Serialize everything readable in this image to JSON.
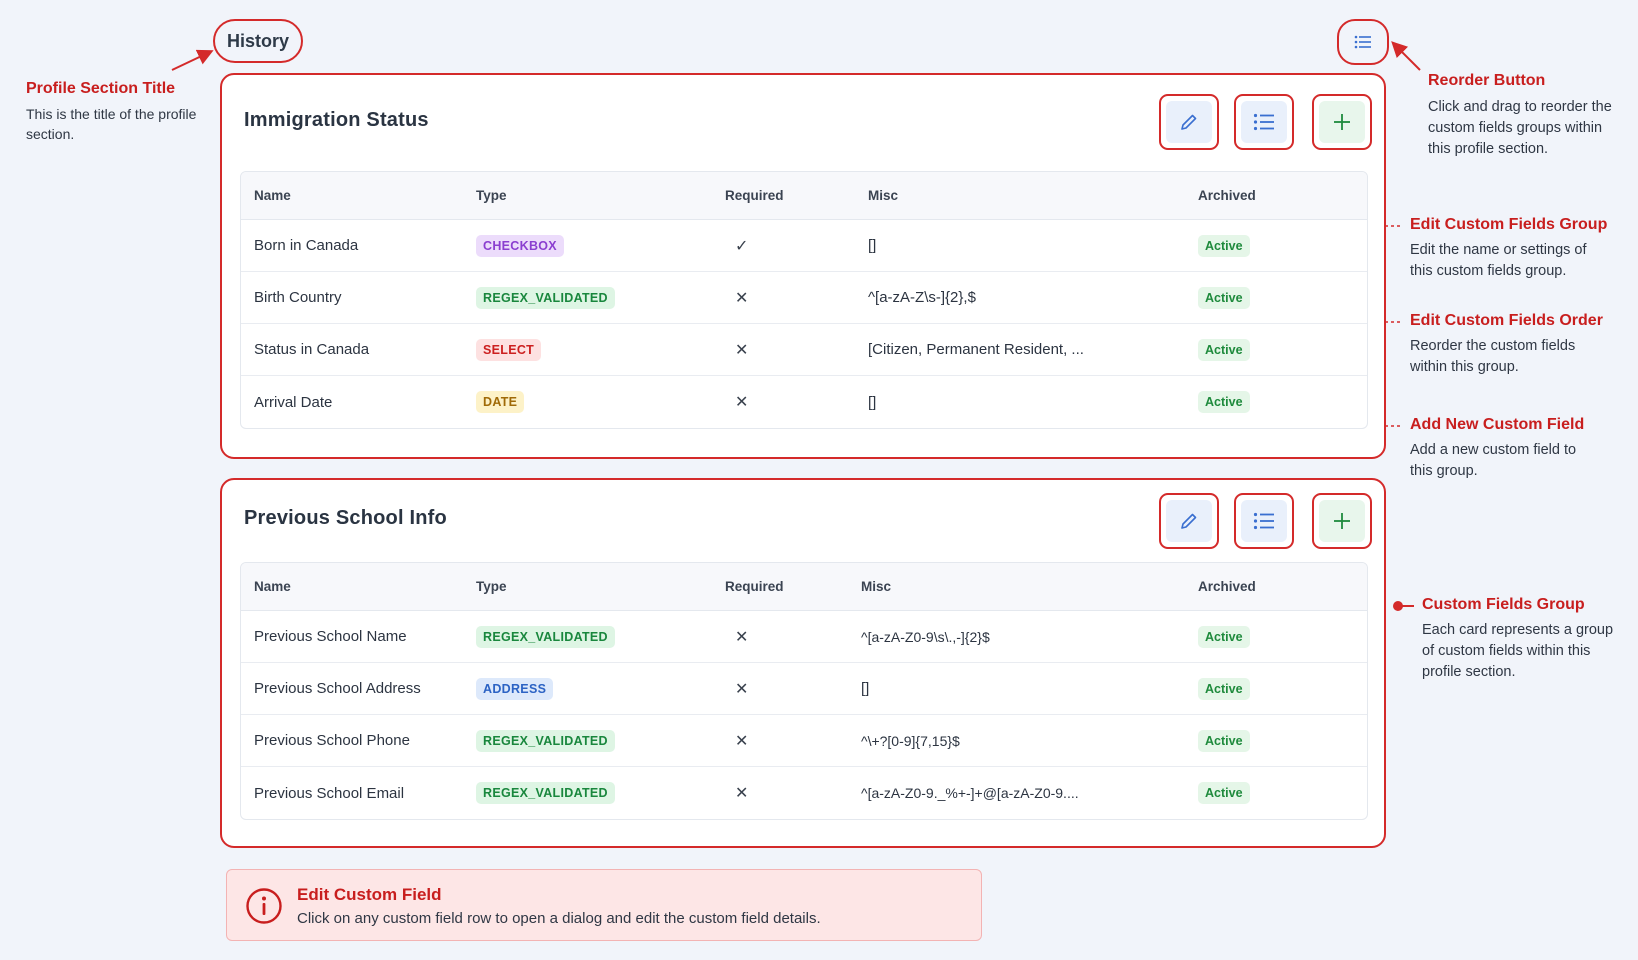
{
  "header": {
    "history_label": "History"
  },
  "callouts": {
    "profile_section_title": {
      "title": "Profile Section Title",
      "text": "This is the title of the profile section."
    },
    "reorder_button": {
      "title": "Reorder Button",
      "text": "Click and drag to reorder the custom fields groups within this profile section."
    },
    "edit_group": {
      "title": "Edit Custom Fields Group",
      "text": "Edit the name or settings of this custom fields group."
    },
    "edit_order": {
      "title": "Edit Custom Fields Order",
      "text": "Reorder the custom fields within this group."
    },
    "add_field": {
      "title": "Add New Custom Field",
      "text": "Add a new custom field to this group."
    },
    "fields_group": {
      "title": "Custom Fields Group",
      "text": "Each card represents a group of custom fields within this profile section."
    }
  },
  "columns": {
    "name": "Name",
    "type": "Type",
    "required": "Required",
    "misc": "Misc",
    "archived": "Archived"
  },
  "groups": [
    {
      "title": "Immigration Status",
      "rows": [
        {
          "name": "Born in Canada",
          "type": "CHECKBOX",
          "required": "✓",
          "misc": "[]",
          "archived": "Active"
        },
        {
          "name": "Birth Country",
          "type": "REGEX_VALIDATED",
          "required": "✕",
          "misc": "^[a-zA-Z\\s-]{2},$",
          "archived": "Active"
        },
        {
          "name": "Status in Canada",
          "type": "SELECT",
          "required": "✕",
          "misc": "[Citizen, Permanent Resident, ...",
          "archived": "Active"
        },
        {
          "name": "Arrival Date",
          "type": "DATE",
          "required": "✕",
          "misc": "[]",
          "archived": "Active"
        }
      ]
    },
    {
      "title": "Previous School Info",
      "rows": [
        {
          "name": "Previous School Name",
          "type": "REGEX_VALIDATED",
          "required": "✕",
          "misc": "^[a-zA-Z0-9\\s\\.,-]{2}$",
          "archived": "Active"
        },
        {
          "name": "Previous School Address",
          "type": "ADDRESS",
          "required": "✕",
          "misc": "[]",
          "archived": "Active"
        },
        {
          "name": "Previous School Phone",
          "type": "REGEX_VALIDATED",
          "required": "✕",
          "misc": "^\\+?[0-9]{7,15}$",
          "archived": "Active"
        },
        {
          "name": "Previous School Email",
          "type": "REGEX_VALIDATED",
          "required": "✕",
          "misc": "^[a-zA-Z0-9._%+-]+@[a-zA-Z0-9....",
          "archived": "Active"
        }
      ]
    }
  ],
  "info_banner": {
    "title": "Edit Custom Field",
    "text": "Click on any custom field row to open a dialog and edit the custom field details."
  },
  "colors": {
    "annotation_red": "#c81e1e",
    "page_bg": "#f1f4fa",
    "active_green": "#1e8a3c"
  }
}
